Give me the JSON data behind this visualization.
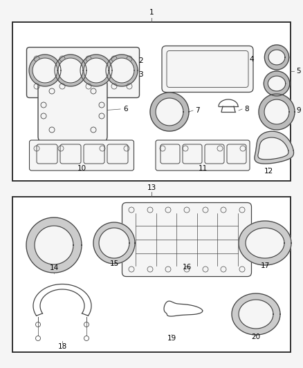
{
  "background": "#f5f5f5",
  "box_color": "#222222",
  "line_color": "#444444",
  "label_color": "#000000",
  "label_fontsize": 7.5,
  "figsize": [
    4.38,
    5.33
  ],
  "dpi": 100
}
